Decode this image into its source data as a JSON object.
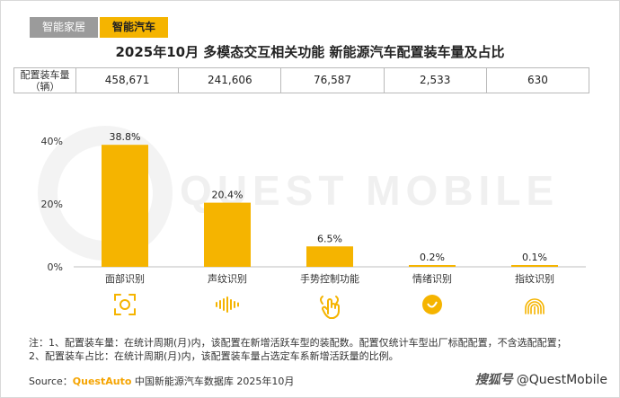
{
  "tabs": [
    {
      "label": "智能家居",
      "active": false
    },
    {
      "label": "智能汽车",
      "active": true
    }
  ],
  "title": "2025年10月 多模态交互相关功能 新能源汽车配置装车量及占比",
  "volume_table": {
    "header": "配置装车量（辆）",
    "values": [
      "458,671",
      "241,606",
      "76,587",
      "2,533",
      "630"
    ]
  },
  "watermark": "QUEST MOBILE",
  "chart_data": {
    "type": "bar",
    "categories": [
      "面部识别",
      "声纹识别",
      "手势控制功能",
      "情绪识别",
      "指纹识别"
    ],
    "values": [
      38.8,
      20.4,
      6.5,
      0.2,
      0.1
    ],
    "data_labels": [
      "38.8%",
      "20.4%",
      "6.5%",
      "0.2%",
      "0.1%"
    ],
    "yticks": [
      0,
      20,
      40
    ],
    "ytick_labels": [
      "0%",
      "20%",
      "40%"
    ],
    "ylim": [
      0,
      42
    ],
    "grid": false,
    "bar_color": "#f5b400",
    "icons": [
      "face-scan-icon",
      "voice-wave-icon",
      "hand-gesture-icon",
      "emotion-icon",
      "fingerprint-icon"
    ]
  },
  "notes": [
    "注：1、配置装车量：在统计周期(月)内，该配置在新增活跃车型的装配数。配置仅统计车型出厂标配配置，不含选配配置；",
    "2、配置装车占比：在统计周期(月)内，该配置装车量占选定车系新增活跃量的比例。"
  ],
  "source": {
    "prefix": "Source：",
    "brand": "QuestAuto",
    "text": " 中国新能源汽车数据库 2025年10月"
  },
  "credit": {
    "logo": "搜狐号",
    "text": "@QuestMobile"
  },
  "accent_color": "#f5b400"
}
